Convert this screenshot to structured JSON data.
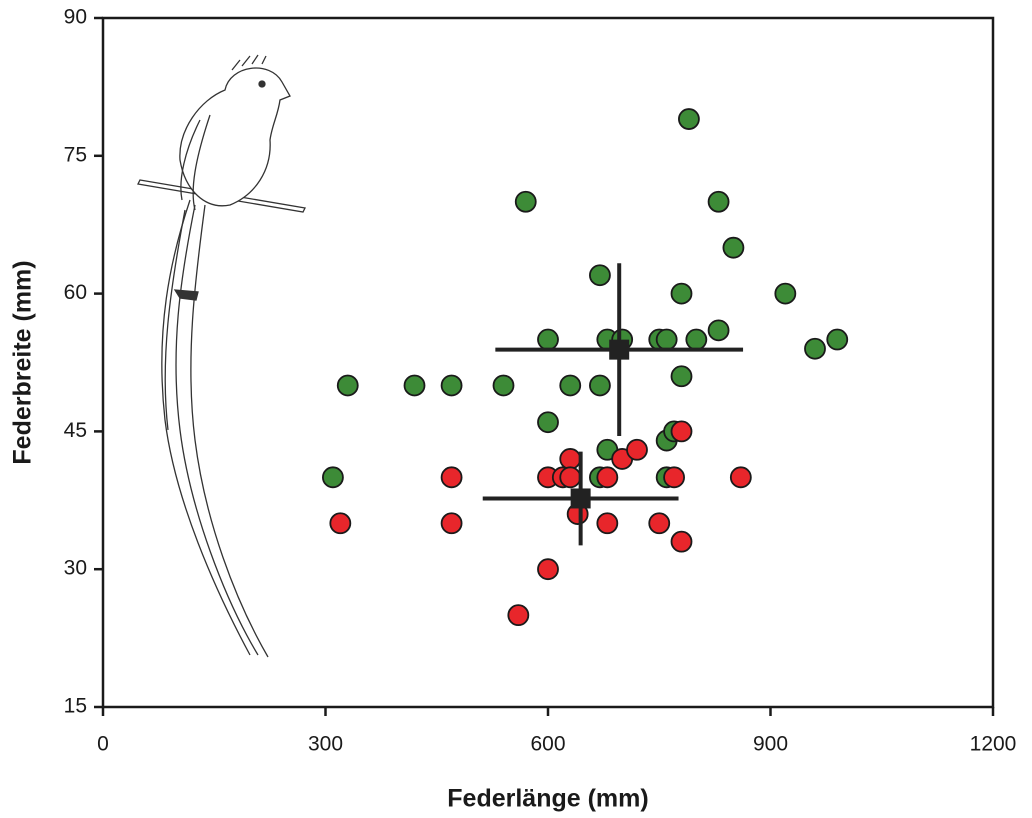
{
  "chart_data": {
    "type": "scatter",
    "x_label": "Federlänge (mm)",
    "y_label": "Federbreite (mm)",
    "xlim": [
      0,
      1200
    ],
    "xticks": [
      0,
      300,
      600,
      900,
      1200
    ],
    "ylim": [
      15,
      90
    ],
    "yticks": [
      15,
      30,
      45,
      60,
      75,
      90
    ],
    "grid": false,
    "series": [
      {
        "color": "#3d8b37",
        "marker": "circle",
        "x": [
          310,
          330,
          420,
          470,
          540,
          570,
          600,
          600,
          630,
          670,
          670,
          680,
          700,
          680,
          670,
          750,
          760,
          760,
          770,
          760,
          790,
          780,
          780,
          800,
          830,
          850,
          830,
          920,
          960,
          990
        ],
        "values": [
          40,
          50,
          50,
          50,
          50,
          70,
          55,
          46,
          50,
          62,
          50,
          55,
          55,
          43,
          40,
          55,
          55,
          44,
          45,
          40,
          79,
          60,
          51,
          55,
          70,
          65,
          56,
          60,
          54,
          55
        ]
      },
      {
        "color": "#e8262b",
        "marker": "circle",
        "x": [
          320,
          470,
          470,
          560,
          600,
          600,
          620,
          630,
          630,
          640,
          680,
          680,
          700,
          720,
          750,
          770,
          780,
          780,
          860
        ],
        "values": [
          35,
          40,
          35,
          25,
          30,
          40,
          40,
          42,
          40,
          36,
          40,
          35,
          42,
          43,
          35,
          40,
          45,
          33,
          40
        ]
      },
      {
        "color": "#222222",
        "marker": "square",
        "x": [
          696,
          644
        ],
        "values": [
          53.9,
          37.7
        ],
        "xerr": [
          167,
          132
        ],
        "yerr": [
          9.4,
          5.1
        ]
      }
    ]
  }
}
